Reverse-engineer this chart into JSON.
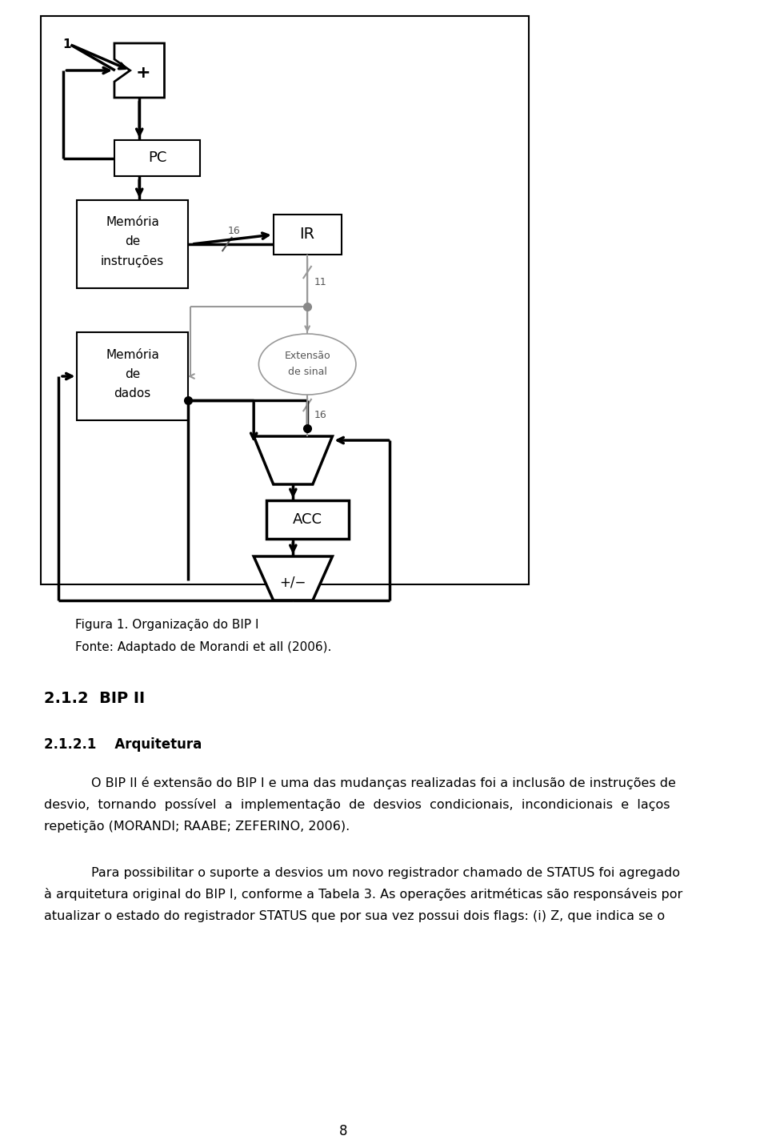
{
  "background_color": "#ffffff",
  "page_width": 9.6,
  "page_height": 14.34,
  "fig_caption_line1": "Figura 1. Organização do BIP I",
  "fig_caption_line2": "Fonte: Adaptado de Morandi et all (2006).",
  "section_heading": "2.1.2  BIP II",
  "subsection_heading": "2.1.2.1    Arquitetura",
  "paragraph1_line1": "O BIP II é extensão do BIP I e uma das mudanças realizadas foi a inclusão de instruções de",
  "paragraph1_line2": "desvio,  tornando  possível  a  implementação  de  desvios  condicionais,  incondicionais  e  laços",
  "paragraph1_line3": "repetição (MORANDI; RAABE; ZEFERINO, 2006).",
  "paragraph2_line1": "Para possibilitar o suporte a desvios um novo registrador chamado de STATUS foi agregado",
  "paragraph2_line2": "à arquitetura original do BIP I, conforme a Tabela 3. As operações aritméticas são responsáveis por",
  "paragraph2_line3": "atualizar o estado do registrador STATUS que por sua vez possui dois flags: (i) Z, que indica se o",
  "page_number": "8"
}
